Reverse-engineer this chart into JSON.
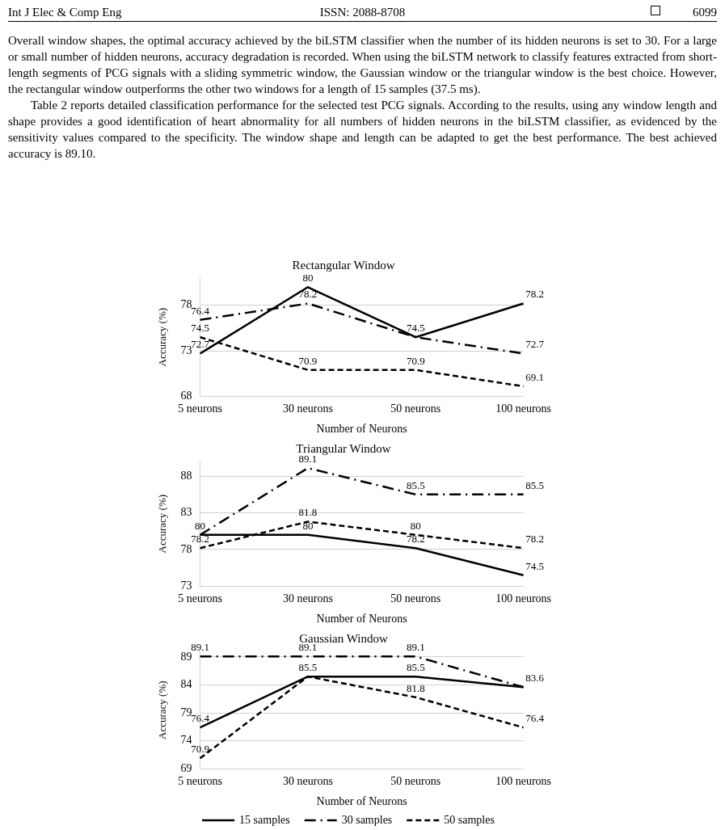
{
  "chart_data": [
    {
      "type": "line",
      "title": "Rectangular Window",
      "xlabel": "Number of Neurons",
      "ylabel": "Accuracy (%)",
      "annotations": [
        "Int J Elec & Comp Eng",
        "ISSN: 2088-8708",
        "6099",
        "Overall window shapes, the optimal accuracy achieved by the biLSTM classifier when the number of its hidden neurons is set to 30. For a large or small number of hidden neurons, accuracy degradation is recorded. When using the biLSTM network to classify features extracted from short-length segments of PCG signals with a sliding symmetric window, the Gaussian window or the triangular window is the best choice. However, the rectangular window outperforms the other two windows for a length of 15 samples (37.5 ms).",
        "Table 2 reports detailed classification performance for the selected test PCG signals. According to the results, using any window length and shape provides a good identification of heart abnormality for all numbers of hidden neurons in the biLSTM classifier, as evidenced by the sensitivity values compared to the specificity. The window shape and length can be adapted to get the best performance. The best achieved accuracy is 89.10."
      ],
      "categories": [
        "5 neurons",
        "30 neurons",
        "50 neurons",
        "100 neurons"
      ],
      "series": [
        {
          "color": "#000000",
          "line_style": "solid",
          "values": [
            72.7,
            80,
            74.5,
            78.2
          ],
          "value_labels": [
            "72.7",
            "80",
            "74.5",
            "78.2"
          ]
        },
        {
          "color": "#000000",
          "line_style": "dashdot",
          "values": [
            76.4,
            78.2,
            74.5,
            72.7
          ],
          "value_labels": [
            "76.4",
            "78.2",
            null,
            "72.7"
          ]
        },
        {
          "color": "#000000",
          "line_style": "dashed",
          "values": [
            74.5,
            70.9,
            70.9,
            69.1
          ],
          "value_labels": [
            "74.5",
            "70.9",
            "70.9",
            "69.1"
          ]
        }
      ],
      "ylim": [
        68,
        81
      ],
      "yticks": [
        68,
        73,
        78
      ],
      "grid": "y",
      "legend": false,
      "marker": "none"
    },
    {
      "type": "line",
      "title": "Triangular Window",
      "xlabel": "Number of Neurons",
      "ylabel": "Accuracy (%)",
      "categories": [
        "5 neurons",
        "30 neurons",
        "50 neurons",
        "100 neurons"
      ],
      "series": [
        {
          "color": "#000000",
          "line_style": "solid",
          "values": [
            80,
            80,
            78.2,
            74.5
          ],
          "value_labels": [
            null,
            "80",
            "78.2",
            "74.5"
          ]
        },
        {
          "color": "#000000",
          "line_style": "dashdot",
          "values": [
            80,
            89.1,
            85.5,
            85.5
          ],
          "value_labels": [
            "80",
            "89.1",
            "85.5",
            "85.5"
          ]
        },
        {
          "color": "#000000",
          "line_style": "dashed",
          "values": [
            78.2,
            81.8,
            80,
            78.2
          ],
          "value_labels": [
            "78.2",
            "81.8",
            "80",
            "78.2"
          ]
        }
      ],
      "ylim": [
        73,
        90
      ],
      "yticks": [
        73,
        78,
        83,
        88
      ],
      "grid": "y",
      "legend": false,
      "marker": "none"
    },
    {
      "type": "line",
      "title": "Gaussian Window",
      "xlabel": "Number of Neurons",
      "ylabel": "Accuracy (%)",
      "categories": [
        "5 neurons",
        "30 neurons",
        "50 neurons",
        "100 neurons"
      ],
      "series": [
        {
          "name": "15 samples",
          "color": "#000000",
          "line_style": "solid",
          "values": [
            76.4,
            85.5,
            85.5,
            83.6
          ],
          "value_labels": [
            "76.4",
            "85.5",
            "85.5",
            "83.6"
          ]
        },
        {
          "name": "30 samples",
          "color": "#000000",
          "line_style": "dashdot",
          "values": [
            89.1,
            89.1,
            89.1,
            83.6
          ],
          "value_labels": [
            "89.1",
            "89.1",
            "89.1",
            null
          ]
        },
        {
          "name": "50 samples",
          "color": "#000000",
          "line_style": "dashed",
          "values": [
            70.9,
            85.5,
            81.8,
            76.4
          ],
          "value_labels": [
            "70.9",
            null,
            "81.8",
            "76.4"
          ]
        }
      ],
      "ylim": [
        69,
        90
      ],
      "yticks": [
        69,
        74,
        79,
        84,
        89
      ],
      "grid": "y",
      "legend": "bottom",
      "marker": "none"
    }
  ]
}
